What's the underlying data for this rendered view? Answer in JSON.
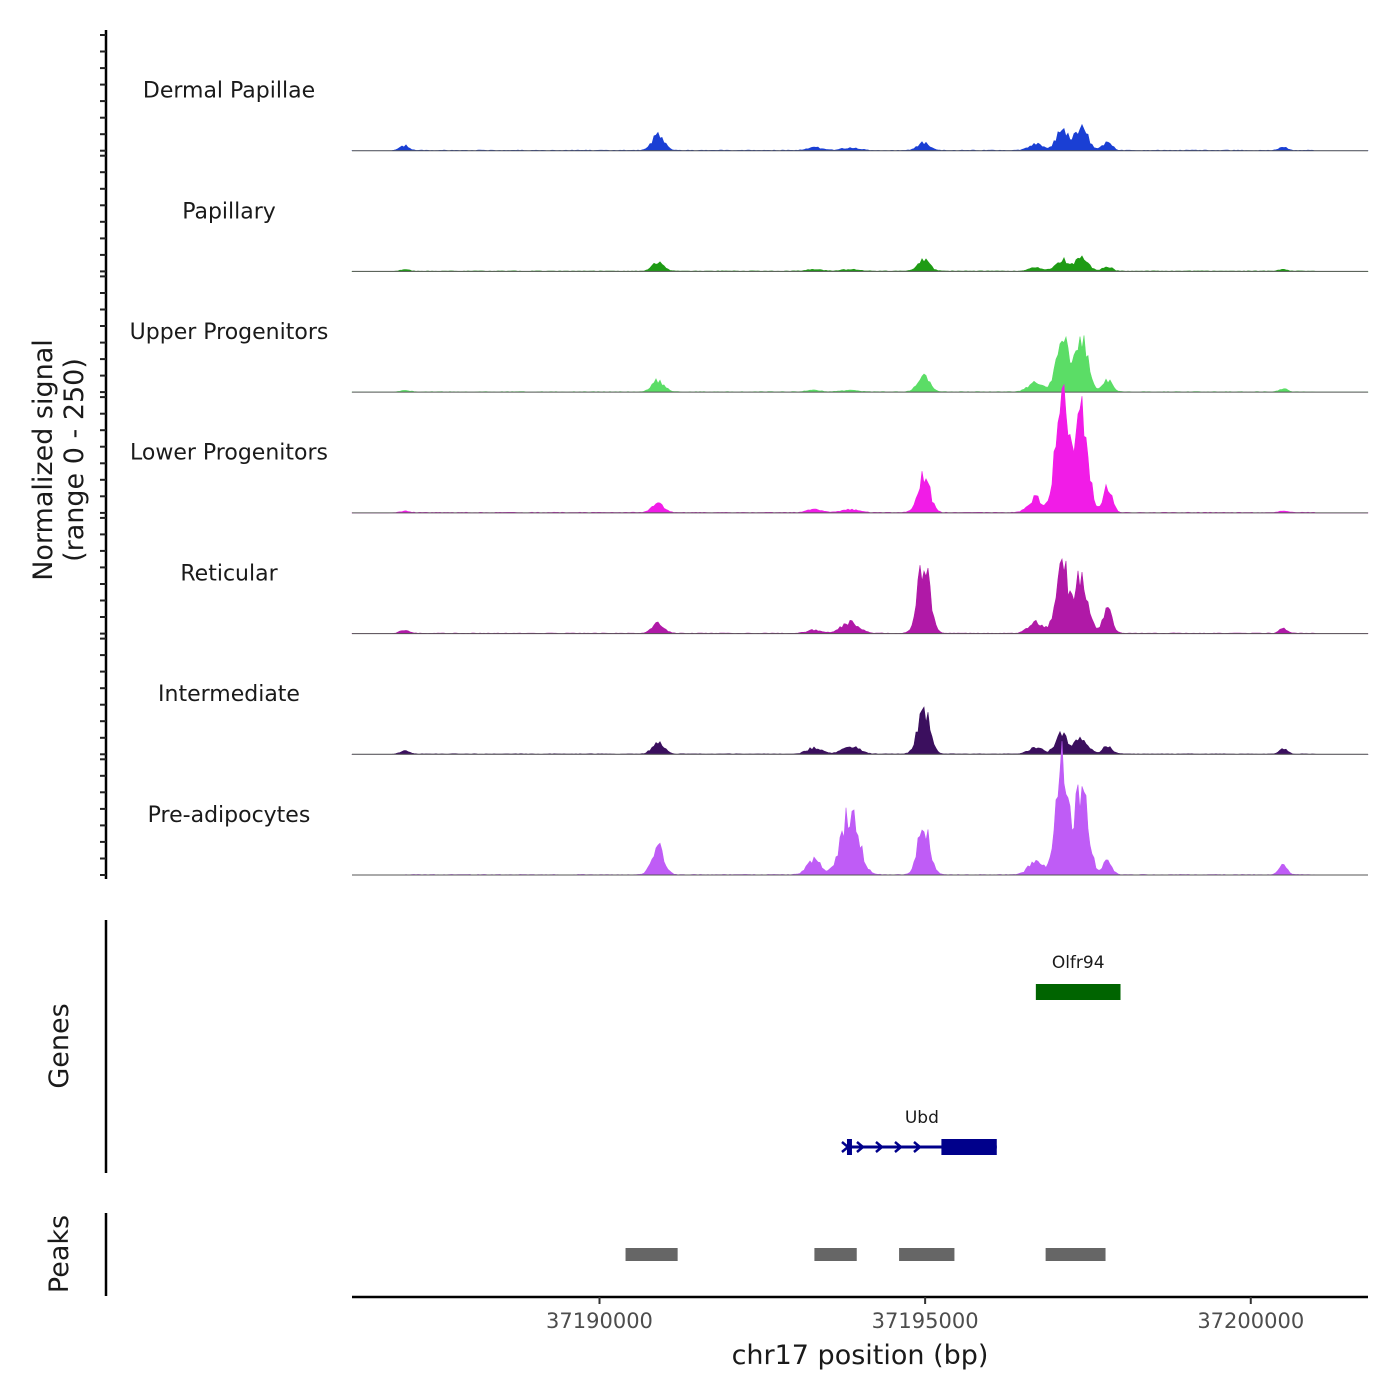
{
  "chart_data": {
    "type": "area",
    "title": "",
    "region": {
      "chromosome": "chr17",
      "start": 37186200,
      "end": 37201800
    },
    "coverage": {
      "ylabel_line1": "Normalized signal",
      "ylabel_line2": "(range 0 - 250)",
      "ylim": [
        0,
        250
      ],
      "peak_sites": [
        {
          "center": 37187000,
          "width": 70
        },
        {
          "center": 37190900,
          "width": 90
        },
        {
          "center": 37193300,
          "width": 110
        },
        {
          "center": 37193850,
          "width": 130
        },
        {
          "center": 37194980,
          "width": 90
        },
        {
          "center": 37196700,
          "width": 110
        },
        {
          "center": 37197100,
          "width": 90
        },
        {
          "center": 37197400,
          "width": 100
        },
        {
          "center": 37197800,
          "width": 70
        },
        {
          "center": 37200500,
          "width": 60
        }
      ],
      "series": [
        {
          "name": "Dermal Papillae",
          "color": "#1a3fd4",
          "peak_values": [
            6,
            20,
            4,
            3,
            10,
            8,
            24,
            28,
            10,
            4
          ]
        },
        {
          "name": "Papillary",
          "color": "#1e9b14",
          "peak_values": [
            2,
            10,
            2,
            2,
            14,
            4,
            14,
            16,
            6,
            2
          ]
        },
        {
          "name": "Upper Progenitors",
          "color": "#5bdd66",
          "peak_values": [
            2,
            14,
            2,
            2,
            22,
            12,
            70,
            62,
            14,
            4
          ]
        },
        {
          "name": "Lower Progenitors",
          "color": "#f11ce7",
          "peak_values": [
            2,
            12,
            4,
            4,
            46,
            18,
            155,
            120,
            30,
            2
          ]
        },
        {
          "name": "Reticular",
          "color": "#b019a7",
          "peak_values": [
            4,
            12,
            4,
            14,
            90,
            14,
            90,
            72,
            28,
            6
          ]
        },
        {
          "name": "Intermediate",
          "color": "#3b0f5e",
          "peak_values": [
            4,
            14,
            8,
            10,
            56,
            8,
            24,
            22,
            10,
            6
          ]
        },
        {
          "name": "Pre-adipocytes",
          "color": "#bf5cf6",
          "peak_values": [
            0,
            34,
            18,
            80,
            62,
            18,
            135,
            110,
            16,
            12
          ]
        }
      ]
    },
    "genes": {
      "label": "Genes",
      "items": [
        {
          "name": "Olfr94",
          "start": 37196700,
          "end": 37198000,
          "strand": "+",
          "color": "#006400",
          "row": 1
        },
        {
          "name": "Ubd",
          "start": 37193800,
          "end": 37196100,
          "cds_start": 37195250,
          "strand": "+",
          "color": "#00008b",
          "row": 2
        }
      ]
    },
    "peaks": {
      "label": "Peaks",
      "color": "#666666",
      "regions": [
        {
          "start": 37190400,
          "end": 37191200
        },
        {
          "start": 37193300,
          "end": 37193950
        },
        {
          "start": 37194600,
          "end": 37195450
        },
        {
          "start": 37196850,
          "end": 37197770
        }
      ]
    },
    "x_axis": {
      "label": "chr17 position (bp)",
      "ticks": [
        37190000,
        37195000,
        37200000
      ],
      "tick_labels": [
        "37190000",
        "37195000",
        "37200000"
      ]
    }
  }
}
